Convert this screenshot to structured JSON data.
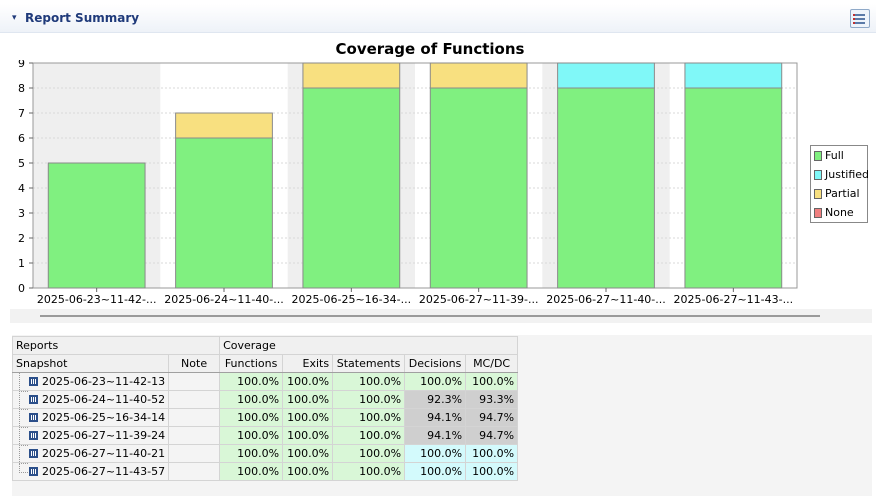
{
  "section": {
    "toggle": "▾",
    "title": "Report Summary",
    "button_icon": "list-settings-icon"
  },
  "chart_data": {
    "type": "bar",
    "stacked": true,
    "title": "Coverage of Functions",
    "categories": [
      "2025-06-23~11-42-...",
      "2025-06-24~11-40-...",
      "2025-06-25~16-34-...",
      "2025-06-27~11-39-...",
      "2025-06-27~11-40-...",
      "2025-06-27~11-43-..."
    ],
    "series": [
      {
        "name": "Full",
        "color": "#80f080",
        "values": [
          5,
          6,
          8,
          8,
          8,
          8
        ]
      },
      {
        "name": "Justified",
        "color": "#80f8f8",
        "values": [
          0,
          0,
          0,
          0,
          1,
          1
        ]
      },
      {
        "name": "Partial",
        "color": "#f8e080",
        "values": [
          0,
          1,
          1,
          1,
          0,
          0
        ]
      },
      {
        "name": "None",
        "color": "#f08080",
        "values": [
          0,
          0,
          0,
          0,
          0,
          0
        ]
      }
    ],
    "ylim": [
      0,
      9
    ],
    "yticks": [
      0,
      1,
      2,
      3,
      4,
      5,
      6,
      7,
      8,
      9
    ],
    "grid": true,
    "legend_position": "right"
  },
  "table": {
    "group_headers": {
      "reports": "Reports",
      "coverage": "Coverage"
    },
    "columns": [
      "Snapshot",
      "Note",
      "Functions",
      "Exits",
      "Statements",
      "Decisions",
      "MC/DC"
    ],
    "rows": [
      {
        "snapshot": "2025-06-23~11-42-13",
        "note": "",
        "functions": "100.0%",
        "exits": "100.0%",
        "statements": "100.0%",
        "decisions": "100.0%",
        "mcdc": "100.0%",
        "decisions_color": "green",
        "mcdc_color": "green"
      },
      {
        "snapshot": "2025-06-24~11-40-52",
        "note": "",
        "functions": "100.0%",
        "exits": "100.0%",
        "statements": "100.0%",
        "decisions": "92.3%",
        "mcdc": "93.3%",
        "decisions_color": "grey",
        "mcdc_color": "grey"
      },
      {
        "snapshot": "2025-06-25~16-34-14",
        "note": "",
        "functions": "100.0%",
        "exits": "100.0%",
        "statements": "100.0%",
        "decisions": "94.1%",
        "mcdc": "94.7%",
        "decisions_color": "grey",
        "mcdc_color": "grey"
      },
      {
        "snapshot": "2025-06-27~11-39-24",
        "note": "",
        "functions": "100.0%",
        "exits": "100.0%",
        "statements": "100.0%",
        "decisions": "94.1%",
        "mcdc": "94.7%",
        "decisions_color": "grey",
        "mcdc_color": "grey"
      },
      {
        "snapshot": "2025-06-27~11-40-21",
        "note": "",
        "functions": "100.0%",
        "exits": "100.0%",
        "statements": "100.0%",
        "decisions": "100.0%",
        "mcdc": "100.0%",
        "decisions_color": "cyan",
        "mcdc_color": "cyan"
      },
      {
        "snapshot": "2025-06-27~11-43-57",
        "note": "",
        "functions": "100.0%",
        "exits": "100.0%",
        "statements": "100.0%",
        "decisions": "100.0%",
        "mcdc": "100.0%",
        "decisions_color": "cyan",
        "mcdc_color": "cyan"
      }
    ]
  }
}
